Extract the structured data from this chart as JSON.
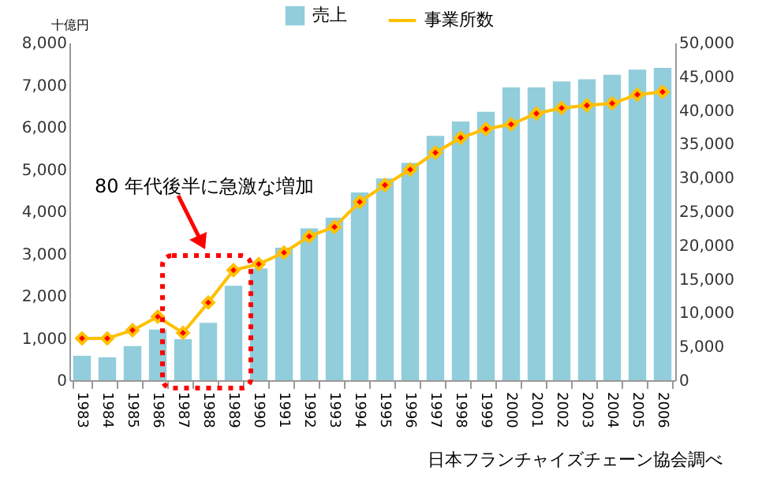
{
  "chart_data": {
    "type": "bar",
    "ylabel": "十億円",
    "categories": [
      "1983",
      "1984",
      "1985",
      "1986",
      "1987",
      "1988",
      "1989",
      "1990",
      "1991",
      "1992",
      "1993",
      "1994",
      "1995",
      "1996",
      "1997",
      "1998",
      "1999",
      "2000",
      "2001",
      "2002",
      "2003",
      "2004",
      "2005",
      "2006"
    ],
    "series": [
      {
        "name": "売上",
        "color": "#92cddc",
        "values": [
          580,
          540,
          810,
          1200,
          970,
          1360,
          2240,
          2650,
          3140,
          3600,
          3850,
          4450,
          4780,
          5150,
          5790,
          6130,
          6360,
          6940,
          6940,
          7080,
          7130,
          7240,
          7360,
          7400
        ]
      },
      {
        "name": "事業所数",
        "type": "line",
        "axis": "y2",
        "color": "#ffc000",
        "values": [
          6200,
          6200,
          7400,
          9400,
          7000,
          11500,
          16300,
          17200,
          18900,
          21300,
          22700,
          26400,
          28900,
          31200,
          33700,
          35900,
          37200,
          37900,
          39500,
          40300,
          40700,
          41000,
          42300,
          42700
        ]
      }
    ],
    "ylim": [
      0,
      8000
    ],
    "yticks": [
      {
        "value": 0,
        "label": "0"
      },
      {
        "value": 1000,
        "label": "1,000"
      },
      {
        "value": 2000,
        "label": "2,000"
      },
      {
        "value": 3000,
        "label": "3,000"
      },
      {
        "value": 4000,
        "label": "4,000"
      },
      {
        "value": 5000,
        "label": "5,000"
      },
      {
        "value": 6000,
        "label": "6,000"
      },
      {
        "value": 7000,
        "label": "7,000"
      },
      {
        "value": 8000,
        "label": "8,000"
      }
    ],
    "y2lim": [
      0,
      50000
    ],
    "y2ticks": [
      {
        "value": 0,
        "label": "0"
      },
      {
        "value": 5000,
        "label": "5,000"
      },
      {
        "value": 10000,
        "label": "10,000"
      },
      {
        "value": 15000,
        "label": "15,000"
      },
      {
        "value": 20000,
        "label": "20,000"
      },
      {
        "value": 25000,
        "label": "25,000"
      },
      {
        "value": 30000,
        "label": "30,000"
      },
      {
        "value": 35000,
        "label": "35,000"
      },
      {
        "value": 40000,
        "label": "40,000"
      },
      {
        "value": 45000,
        "label": "45,000"
      },
      {
        "value": 50000,
        "label": "50,000"
      }
    ],
    "marker": "diamond",
    "legend": "top",
    "grid": false,
    "annotations": [
      "80 年代後半に急激な増加",
      "日本フランチャイズチェーン協会調べ"
    ]
  }
}
